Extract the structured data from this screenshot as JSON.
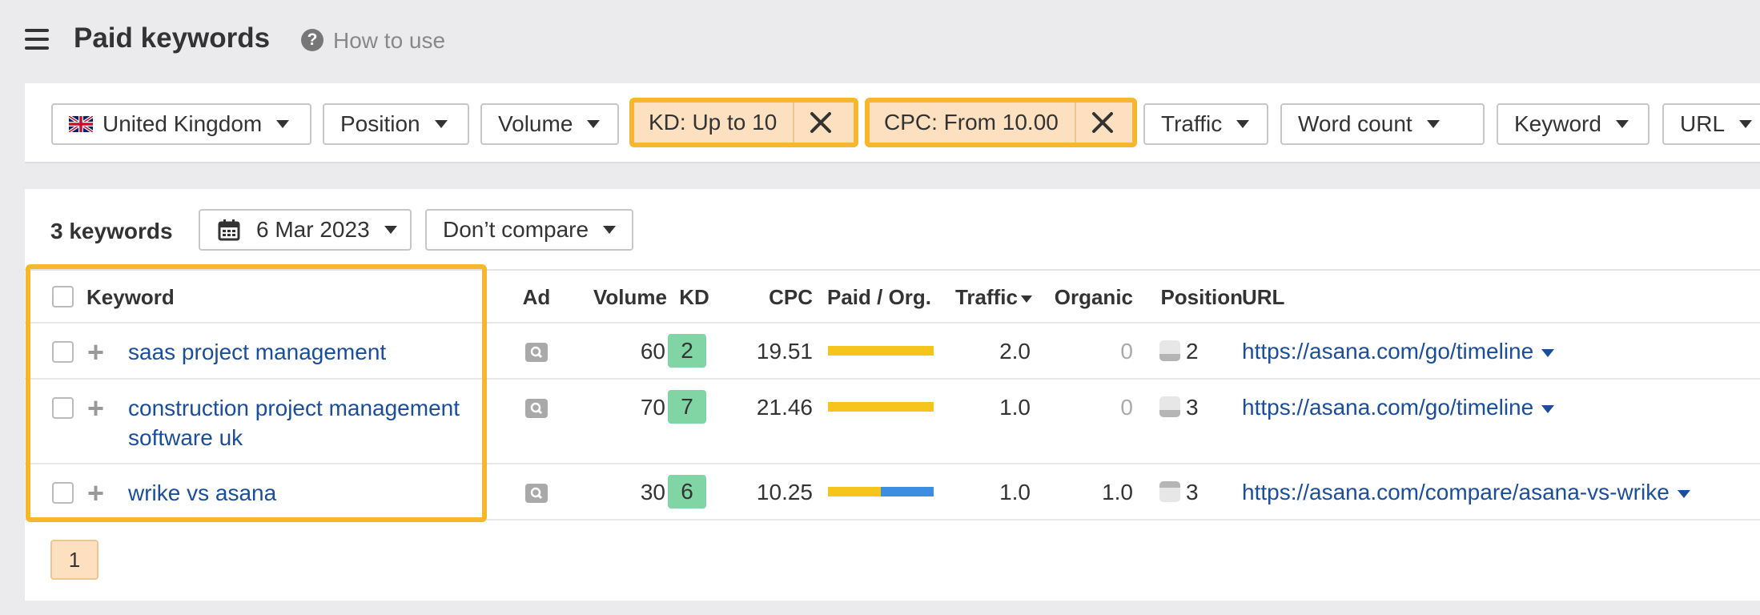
{
  "header": {
    "title": "Paid keywords",
    "help_label": "How to use"
  },
  "filters": {
    "country": "United Kingdom",
    "position": "Position",
    "volume": "Volume",
    "kd_active": "KD: Up to 10",
    "cpc_active": "CPC: From 10.00",
    "traffic": "Traffic",
    "word_count": "Word count",
    "keyword": "Keyword",
    "url": "URL"
  },
  "toolbar": {
    "count": "3 keywords",
    "date": "6 Mar 2023",
    "compare": "Don’t compare"
  },
  "columns": {
    "keyword": "Keyword",
    "ad": "Ad",
    "volume": "Volume",
    "kd": "KD",
    "cpc": "CPC",
    "paid_org": "Paid / Org.",
    "traffic": "Traffic",
    "organic": "Organic",
    "position": "Position",
    "url": "URL"
  },
  "rows": [
    {
      "keyword": "saas project management",
      "keyword_line2": "",
      "volume": "60",
      "kd": "2",
      "cpc": "19.51",
      "paid_fraction": 1.0,
      "traffic": "2.0",
      "organic": "0",
      "position": "2",
      "url": "https://asana.com/go/timeline"
    },
    {
      "keyword": "construction project management",
      "keyword_line2": "software uk",
      "volume": "70",
      "kd": "7",
      "cpc": "21.46",
      "paid_fraction": 1.0,
      "traffic": "1.0",
      "organic": "0",
      "position": "3",
      "url": "https://asana.com/go/timeline"
    },
    {
      "keyword": "wrike vs asana",
      "keyword_line2": "",
      "volume": "30",
      "kd": "6",
      "cpc": "10.25",
      "paid_fraction": 0.5,
      "traffic": "1.0",
      "organic": "1.0",
      "position": "3",
      "url": "https://asana.com/compare/asana-vs-wrike"
    }
  ],
  "pagination": {
    "current": "1"
  },
  "colors": {
    "paid": "#f6c51b",
    "organic": "#3d8de0",
    "highlight": "#f8b52e",
    "kd_easy": "#81d4a3",
    "link": "#1a4d9c"
  }
}
